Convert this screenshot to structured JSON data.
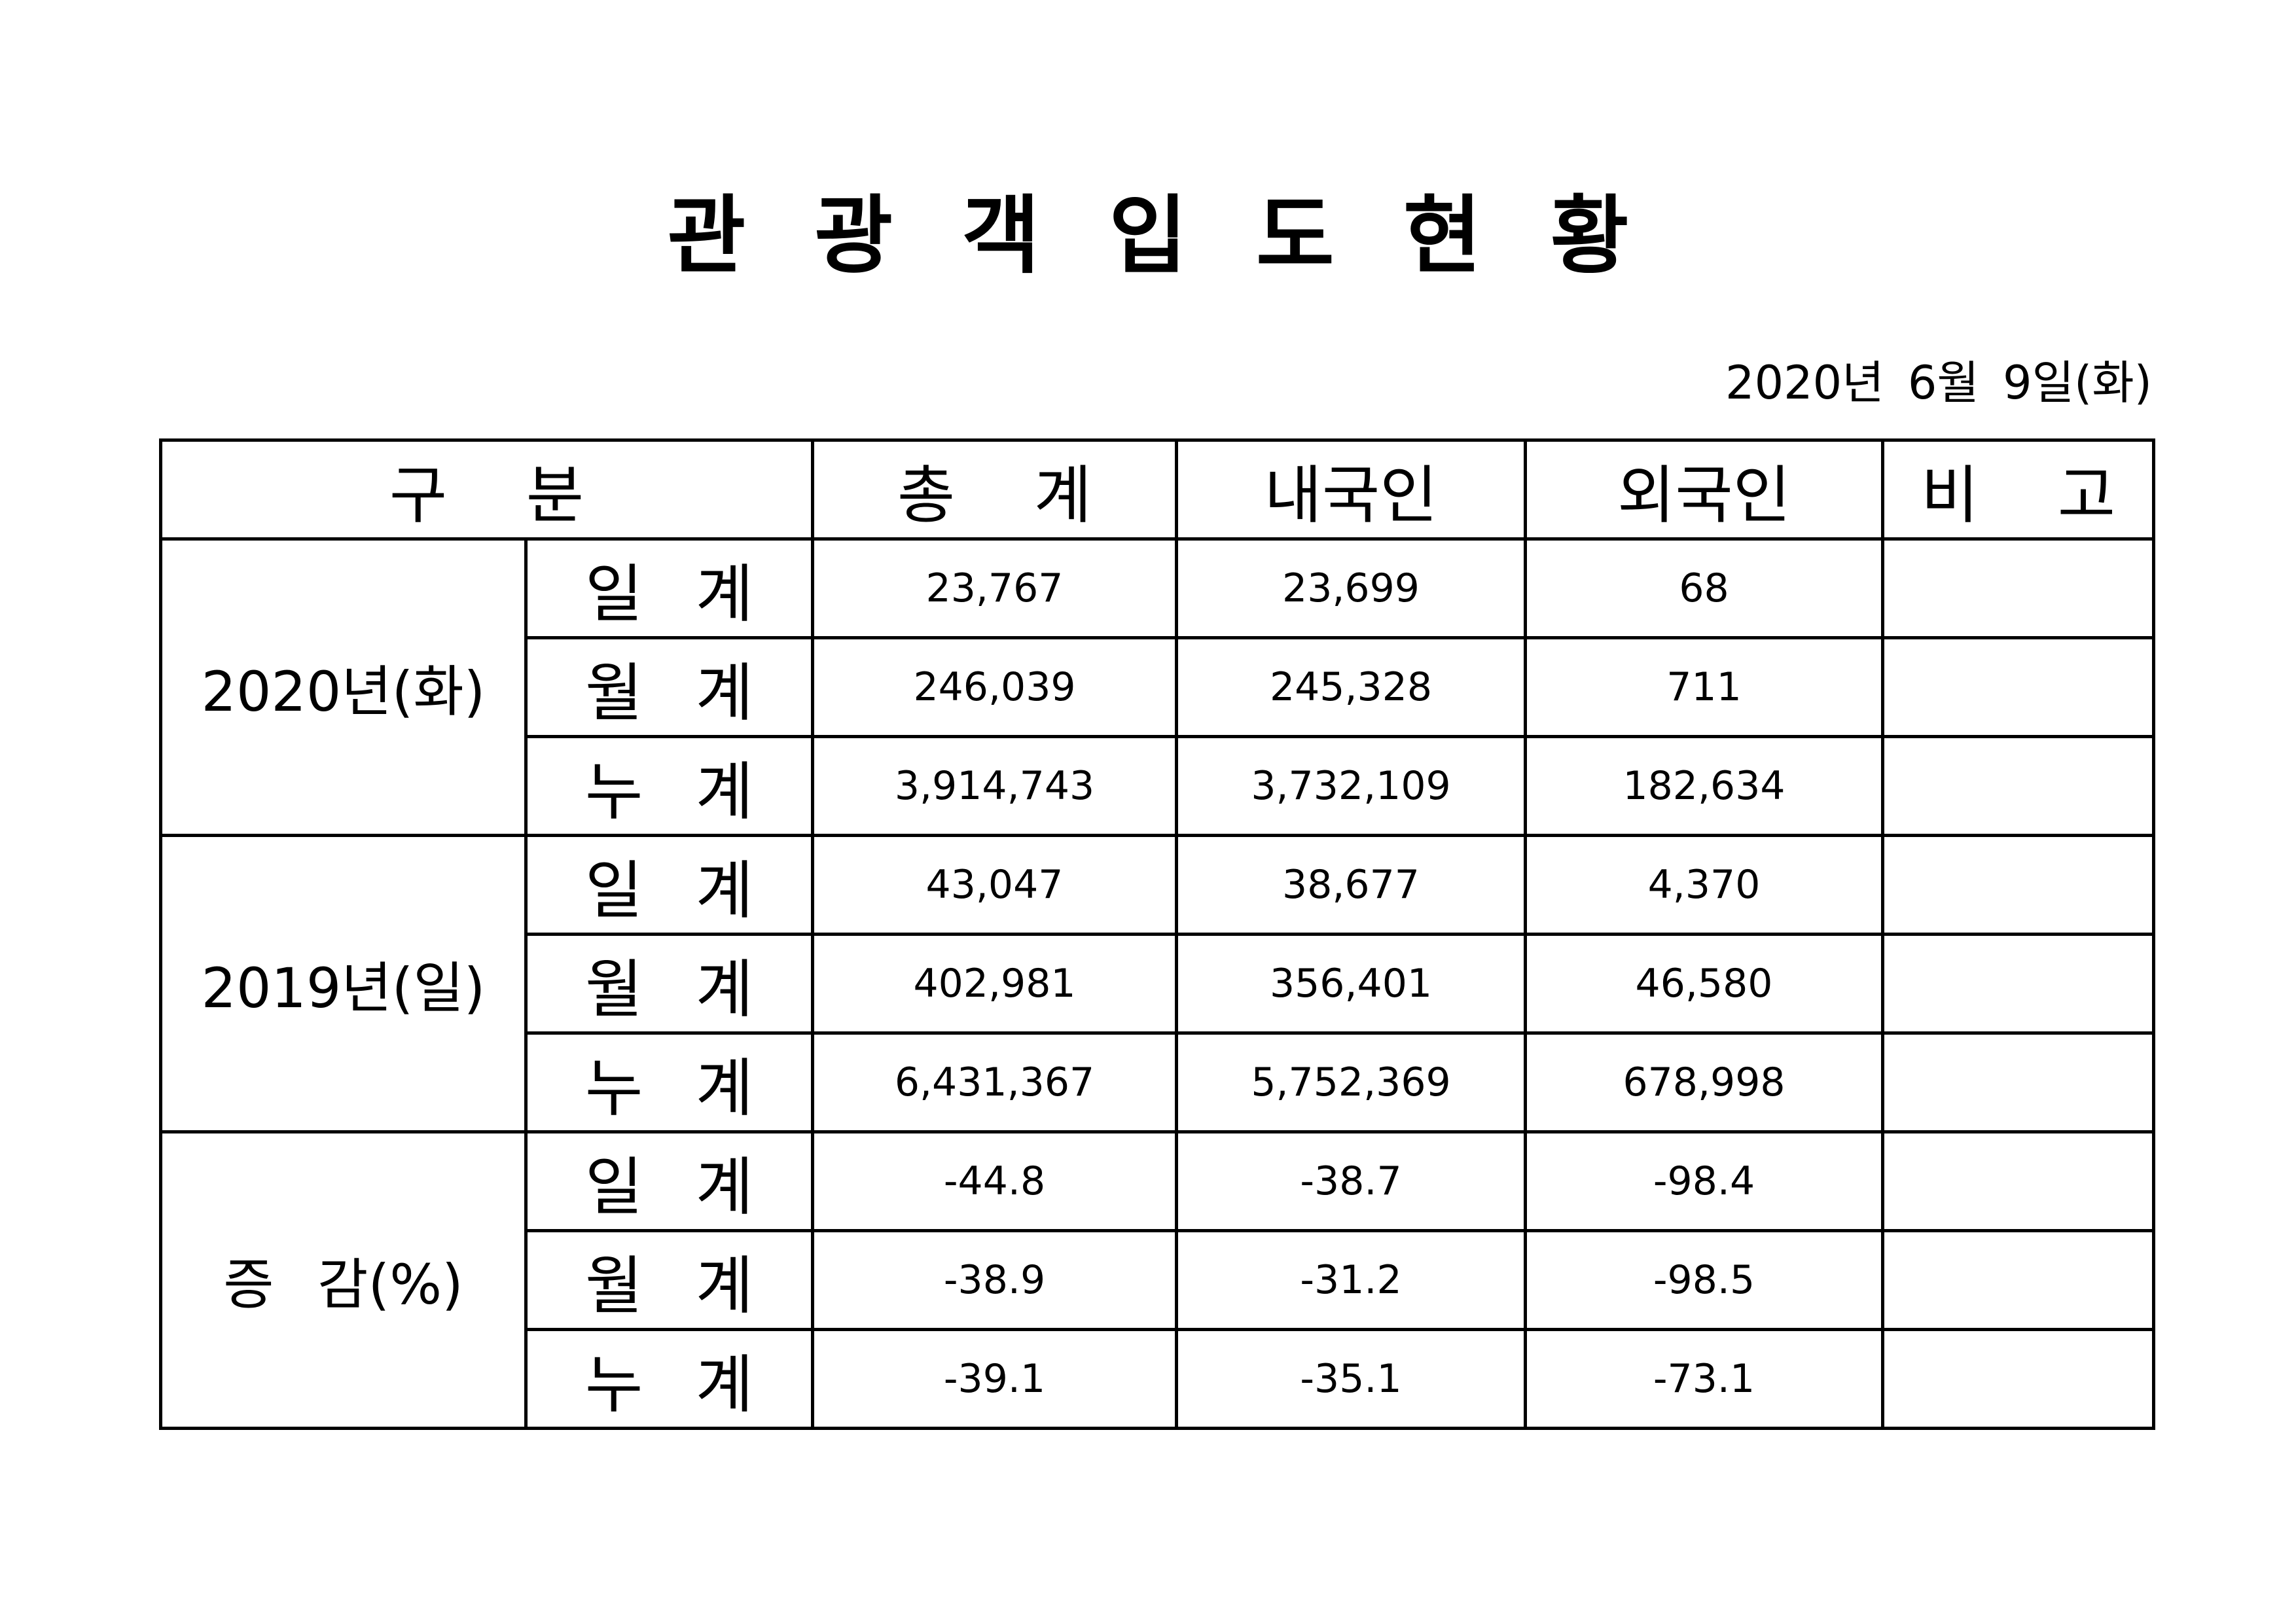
{
  "header": {
    "title": "관 광 객 입 도 현 황",
    "date": "2020년 6월 9일(화)"
  },
  "table": {
    "columns": [
      "구 분",
      "총 계",
      "내국인",
      "외국인",
      "비 고"
    ],
    "groups": [
      {
        "label": "2020년(화)",
        "rows": [
          {
            "label": "일 계",
            "values": [
              "23,767",
              "23,699",
              "68"
            ]
          },
          {
            "label": "월 계",
            "values": [
              "246,039",
              "245,328",
              "711"
            ]
          },
          {
            "label": "누 계",
            "values": [
              "3,914,743",
              "3,732,109",
              "182,634"
            ]
          }
        ]
      },
      {
        "label": "2019년(일)",
        "rows": [
          {
            "label": "일 계",
            "values": [
              "43,047",
              "38,677",
              "4,370"
            ]
          },
          {
            "label": "월 계",
            "values": [
              "402,981",
              "356,401",
              "46,580"
            ]
          },
          {
            "label": "누 계",
            "values": [
              "6,431,367",
              "5,752,369",
              "678,998"
            ]
          }
        ]
      },
      {
        "label": "증 감(%)",
        "rows": [
          {
            "label": "일 계",
            "values": [
              "-44.8",
              "-38.7",
              "-98.4"
            ]
          },
          {
            "label": "월 계",
            "values": [
              "-38.9",
              "-31.2",
              "-98.5"
            ]
          },
          {
            "label": "누 계",
            "values": [
              "-39.1",
              "-35.1",
              "-73.1"
            ]
          }
        ]
      }
    ]
  }
}
